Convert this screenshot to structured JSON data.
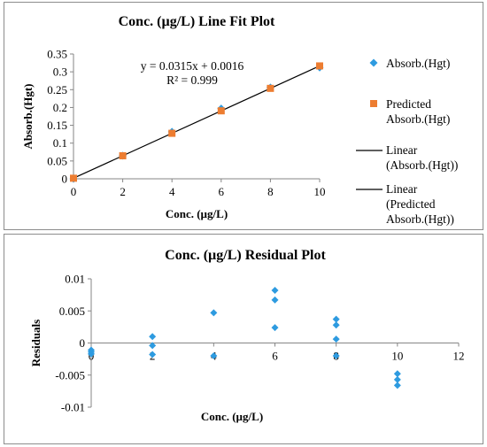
{
  "chart_data": [
    {
      "type": "scatter",
      "title": "Conc. (µg/L)  Line Fit  Plot",
      "xlabel": "Conc. (µg/L)",
      "ylabel": "Absorb.(Hgt)",
      "xlim": [
        0,
        10
      ],
      "ylim": [
        0,
        0.35
      ],
      "x_ticks": [
        "0",
        "2",
        "4",
        "6",
        "8",
        "10"
      ],
      "y_ticks": [
        "0",
        "0.05",
        "0.1",
        "0.15",
        "0.2",
        "0.25",
        "0.3",
        "0.35"
      ],
      "series": [
        {
          "name": "Absorb.(Hgt)",
          "marker": "diamond",
          "color": "#2e9be0",
          "x": [
            0,
            2,
            4,
            6,
            8,
            10
          ],
          "y": [
            0.0,
            0.065,
            0.132,
            0.197,
            0.256,
            0.312
          ]
        },
        {
          "name": "Predicted Absorb.(Hgt)",
          "marker": "square",
          "color": "#ed7d31",
          "x": [
            0,
            2,
            4,
            6,
            8,
            10
          ],
          "y": [
            0.0016,
            0.0646,
            0.1276,
            0.1906,
            0.2536,
            0.3166
          ]
        }
      ],
      "trendlines": [
        {
          "name": "Linear (Absorb.(Hgt))",
          "slope": 0.0315,
          "intercept": 0.0016
        },
        {
          "name": "Linear (Predicted Absorb.(Hgt))",
          "slope": 0.0315,
          "intercept": 0.0016
        }
      ],
      "equation": "y = 0.0315x + 0.0016",
      "r_squared": "R² = 0.999",
      "legend": "right",
      "grid": false
    },
    {
      "type": "scatter",
      "title": "Conc. (µg/L)    Residual Plot",
      "xlabel": "Conc. (µg/L)",
      "ylabel": "Residuals",
      "xlim": [
        0,
        12
      ],
      "ylim": [
        -0.01,
        0.01
      ],
      "x_ticks": [
        "0",
        "2",
        "4",
        "6",
        "8",
        "10",
        "12"
      ],
      "y_ticks": [
        "-0.01",
        "-0.005",
        "0",
        "0.005",
        "0.01"
      ],
      "series": [
        {
          "name": "Residuals",
          "marker": "diamond",
          "color": "#2e9be0",
          "x": [
            0,
            0,
            0,
            2,
            2,
            2,
            4,
            4,
            6,
            6,
            6,
            8,
            8,
            8,
            8,
            10,
            10,
            10
          ],
          "y": [
            -0.0011,
            -0.0014,
            -0.0017,
            0.001,
            -0.0004,
            -0.0018,
            0.0047,
            -0.002,
            0.0082,
            0.0067,
            0.0024,
            0.0037,
            0.0028,
            0.0006,
            -0.002,
            -0.0048,
            -0.0057,
            -0.0066
          ]
        }
      ],
      "legend": "none",
      "grid": false
    }
  ]
}
